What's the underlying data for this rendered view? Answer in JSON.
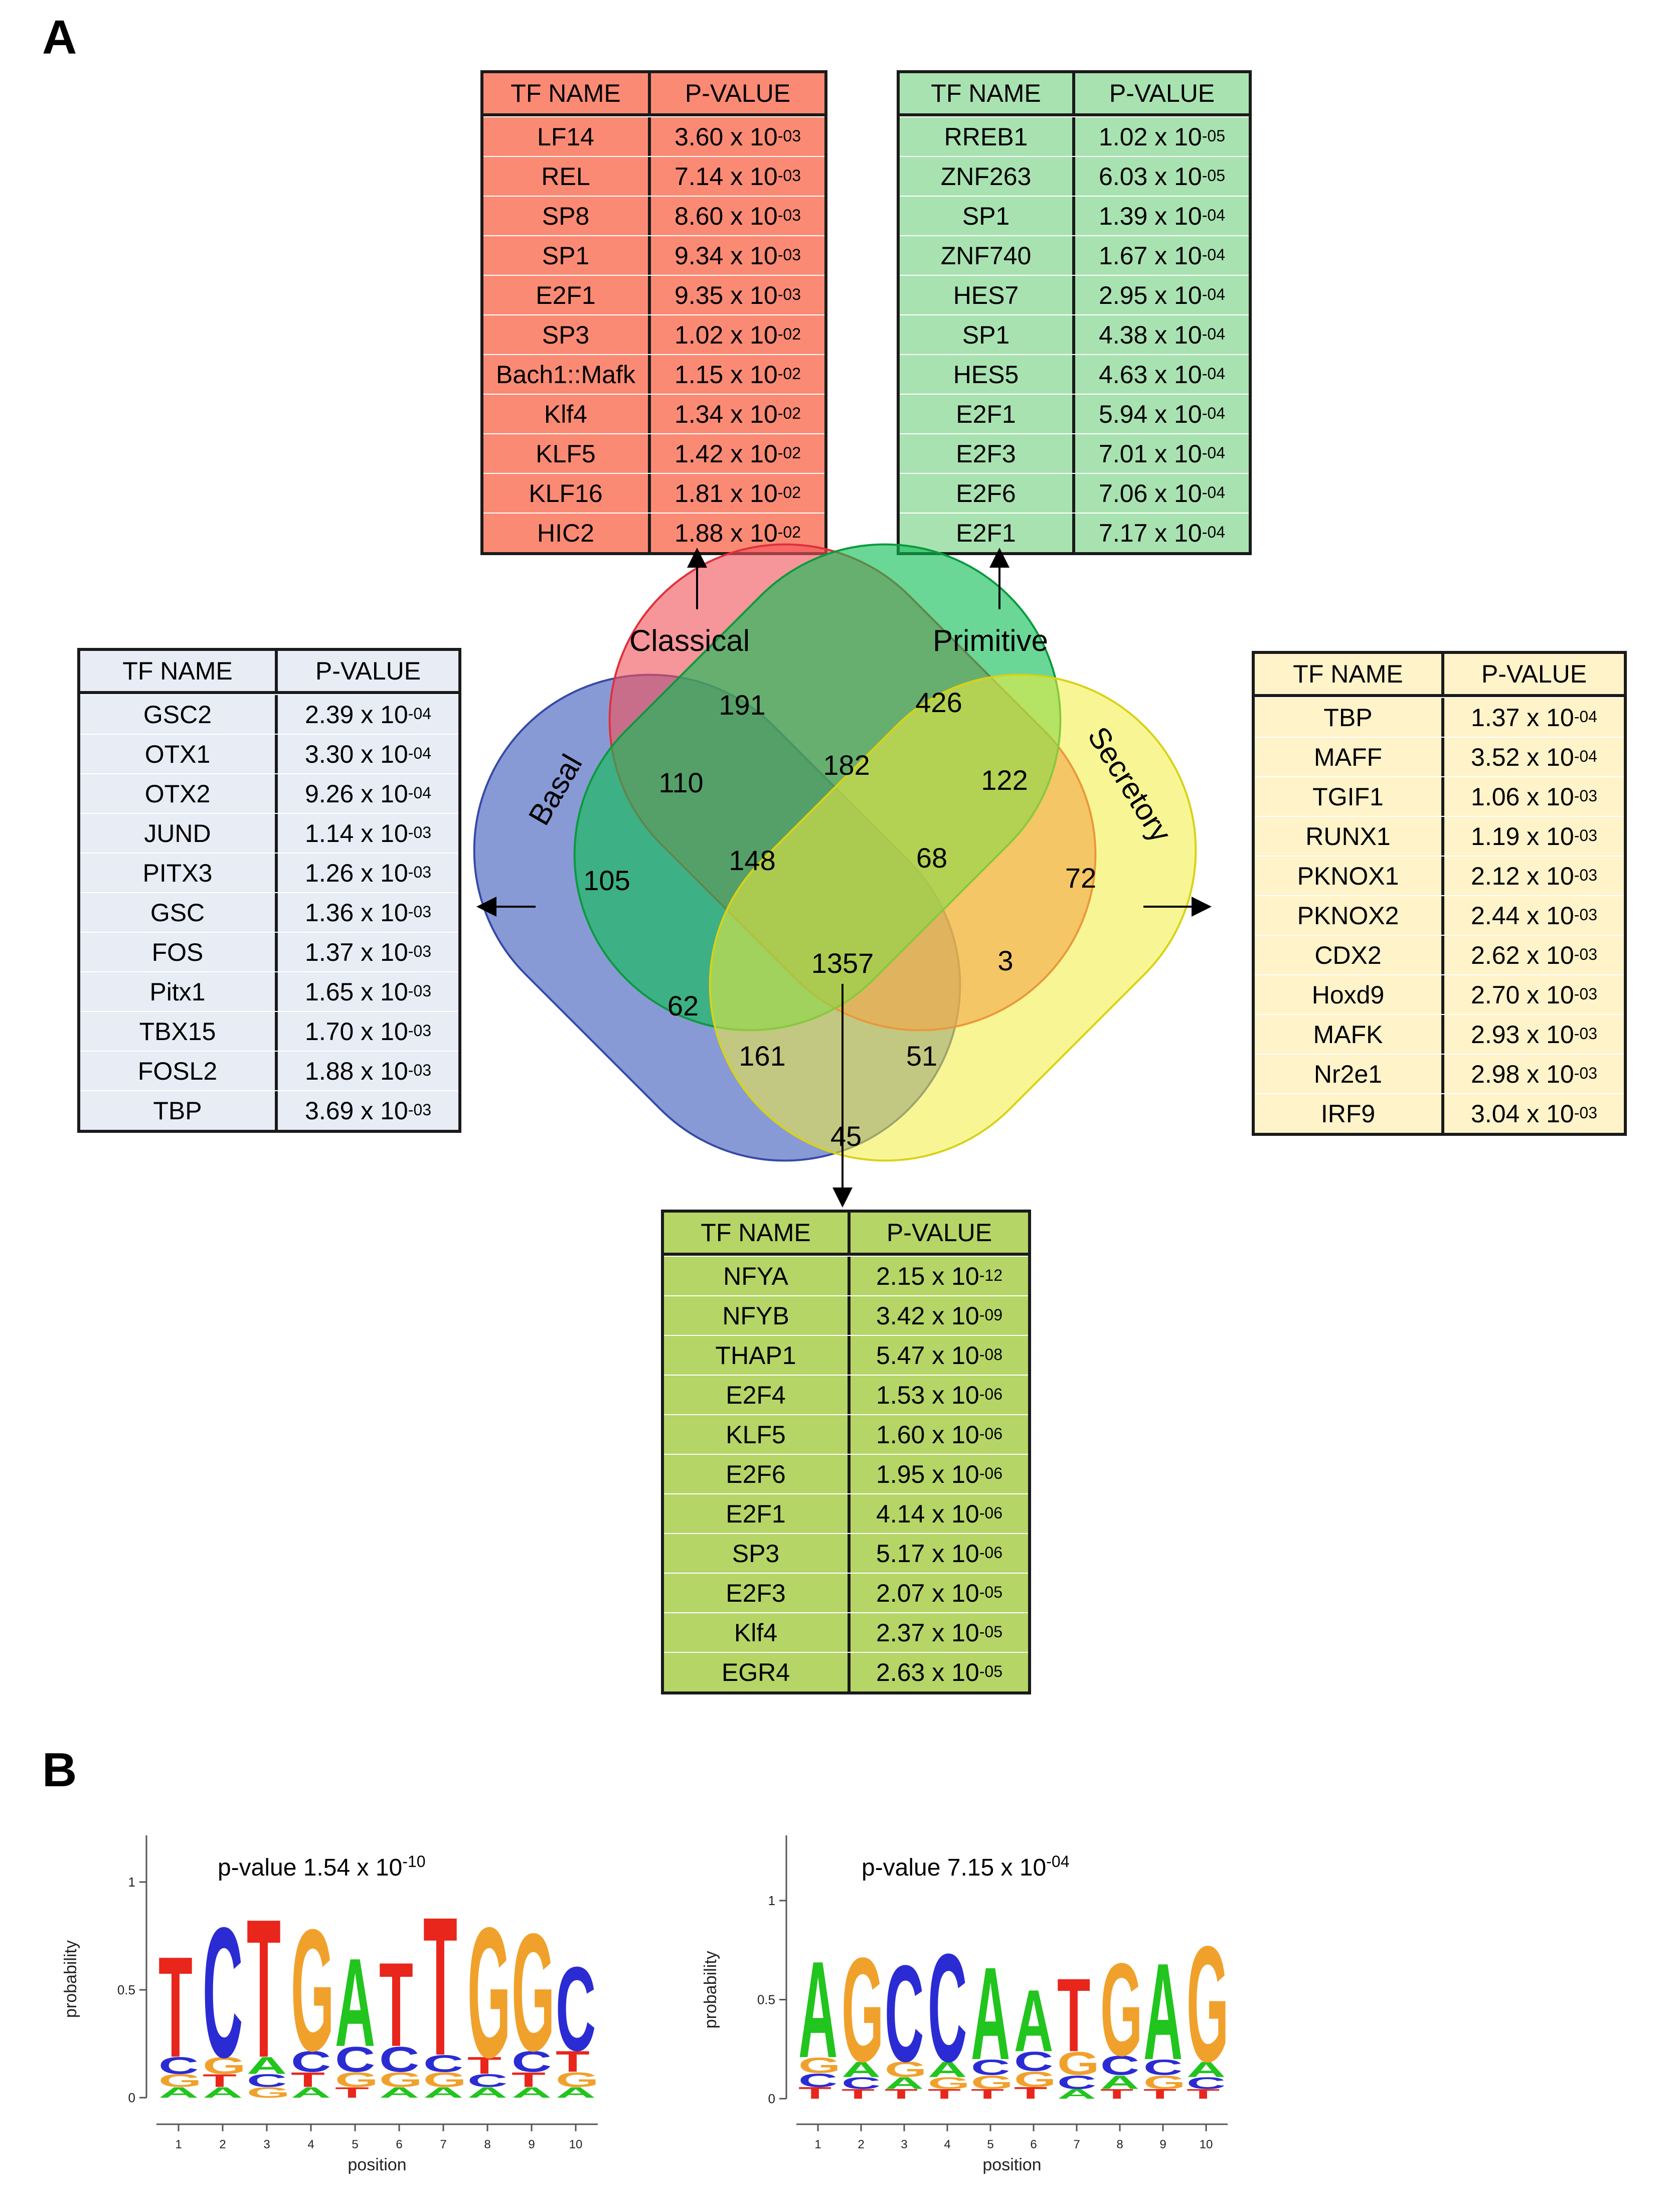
{
  "panel_labels": {
    "a": "A",
    "b": "B"
  },
  "venn": {
    "set_labels": {
      "classical": "Classical",
      "primitive": "Primitive",
      "basal": "Basal",
      "secretory": "Secretory"
    },
    "regions": {
      "classical_only": "191",
      "primitive_only": "426",
      "basal_only": "105",
      "secretory_only": "72",
      "basal_classical": "110",
      "classical_primitive": "182",
      "primitive_secretory": "122",
      "basal_classical_primitive": "148",
      "classical_primitive_secretory": "68",
      "all_four": "1357",
      "basal_primitive": "62",
      "classical_secretory": "3",
      "basal_primitive_secretory": "161",
      "basal_classical_secretory": "51",
      "basal_secretory": "45"
    }
  },
  "tables": {
    "classical": {
      "color": "#fb8a74",
      "header": {
        "name": "TF NAME",
        "pvalue": "P-VALUE"
      },
      "rows": [
        {
          "name": "LF14",
          "mant": "3.60 x 10",
          "exp": "-03"
        },
        {
          "name": "REL",
          "mant": "7.14 x 10",
          "exp": "-03"
        },
        {
          "name": "SP8",
          "mant": "8.60 x 10",
          "exp": "-03"
        },
        {
          "name": "SP1",
          "mant": "9.34 x 10",
          "exp": "-03"
        },
        {
          "name": "E2F1",
          "mant": "9.35 x 10",
          "exp": "-03"
        },
        {
          "name": "SP3",
          "mant": "1.02 x 10",
          "exp": "-02"
        },
        {
          "name": "Bach1::Mafk",
          "mant": "1.15 x 10",
          "exp": "-02"
        },
        {
          "name": "Klf4",
          "mant": "1.34 x 10",
          "exp": "-02"
        },
        {
          "name": "KLF5",
          "mant": "1.42 x 10",
          "exp": "-02"
        },
        {
          "name": "KLF16",
          "mant": "1.81 x 10",
          "exp": "-02"
        },
        {
          "name": "HIC2",
          "mant": "1.88 x 10",
          "exp": "-02"
        }
      ]
    },
    "primitive": {
      "color": "#a9e2b1",
      "header": {
        "name": "TF NAME",
        "pvalue": "P-VALUE"
      },
      "rows": [
        {
          "name": "RREB1",
          "mant": "1.02 x 10",
          "exp": "-05"
        },
        {
          "name": "ZNF263",
          "mant": "6.03 x 10",
          "exp": "-05"
        },
        {
          "name": "SP1",
          "mant": "1.39 x 10",
          "exp": "-04"
        },
        {
          "name": "ZNF740",
          "mant": "1.67 x 10",
          "exp": "-04"
        },
        {
          "name": "HES7",
          "mant": "2.95 x 10",
          "exp": "-04"
        },
        {
          "name": "SP1",
          "mant": "4.38 x 10",
          "exp": "-04"
        },
        {
          "name": "HES5",
          "mant": "4.63 x 10",
          "exp": "-04"
        },
        {
          "name": "E2F1",
          "mant": "5.94 x 10",
          "exp": "-04"
        },
        {
          "name": "E2F3",
          "mant": "7.01 x 10",
          "exp": "-04"
        },
        {
          "name": "E2F6",
          "mant": "7.06 x 10",
          "exp": "-04"
        },
        {
          "name": "E2F1",
          "mant": "7.17 x 10",
          "exp": "-04"
        }
      ]
    },
    "basal": {
      "color": "#e8ecf5",
      "header": {
        "name": "TF NAME",
        "pvalue": "P-VALUE"
      },
      "rows": [
        {
          "name": "GSC2",
          "mant": "2.39 x 10",
          "exp": "-04"
        },
        {
          "name": "OTX1",
          "mant": "3.30 x 10",
          "exp": "-04"
        },
        {
          "name": "OTX2",
          "mant": "9.26 x 10",
          "exp": "-04"
        },
        {
          "name": "JUND",
          "mant": "1.14 x 10",
          "exp": "-03"
        },
        {
          "name": "PITX3",
          "mant": "1.26 x 10",
          "exp": "-03"
        },
        {
          "name": "GSC",
          "mant": "1.36 x 10",
          "exp": "-03"
        },
        {
          "name": "FOS",
          "mant": "1.37 x 10",
          "exp": "-03"
        },
        {
          "name": "Pitx1",
          "mant": "1.65 x 10",
          "exp": "-03"
        },
        {
          "name": "TBX15",
          "mant": "1.70 x 10",
          "exp": "-03"
        },
        {
          "name": "FOSL2",
          "mant": "1.88 x 10",
          "exp": "-03"
        },
        {
          "name": "TBP",
          "mant": "3.69 x 10",
          "exp": "-03"
        }
      ]
    },
    "secretory": {
      "color": "#fff3c9",
      "header": {
        "name": "TF NAME",
        "pvalue": "P-VALUE"
      },
      "rows": [
        {
          "name": "TBP",
          "mant": "1.37 x 10",
          "exp": "-04"
        },
        {
          "name": "MAFF",
          "mant": "3.52 x 10",
          "exp": "-04"
        },
        {
          "name": "TGIF1",
          "mant": "1.06 x 10",
          "exp": "-03"
        },
        {
          "name": "RUNX1",
          "mant": "1.19 x 10",
          "exp": "-03"
        },
        {
          "name": "PKNOX1",
          "mant": "2.12 x 10",
          "exp": "-03"
        },
        {
          "name": "PKNOX2",
          "mant": "2.44 x 10",
          "exp": "-03"
        },
        {
          "name": "CDX2",
          "mant": "2.62 x 10",
          "exp": "-03"
        },
        {
          "name": "Hoxd9",
          "mant": "2.70 x 10",
          "exp": "-03"
        },
        {
          "name": "MAFK",
          "mant": "2.93 x 10",
          "exp": "-03"
        },
        {
          "name": "Nr2e1",
          "mant": "2.98 x 10",
          "exp": "-03"
        },
        {
          "name": "IRF9",
          "mant": "3.04 x 10",
          "exp": "-03"
        }
      ]
    },
    "common": {
      "color": "#b5d567",
      "header": {
        "name": "TF NAME",
        "pvalue": "P-VALUE"
      },
      "rows": [
        {
          "name": "NFYA",
          "mant": "2.15 x 10",
          "exp": "-12"
        },
        {
          "name": "NFYB",
          "mant": "3.42 x 10",
          "exp": "-09"
        },
        {
          "name": "THAP1",
          "mant": "5.47 x 10",
          "exp": "-08"
        },
        {
          "name": "E2F4",
          "mant": "1.53 x 10",
          "exp": "-06"
        },
        {
          "name": "KLF5",
          "mant": "1.60 x 10",
          "exp": "-06"
        },
        {
          "name": "E2F6",
          "mant": "1.95 x 10",
          "exp": "-06"
        },
        {
          "name": "E2F1",
          "mant": "4.14 x 10",
          "exp": "-06"
        },
        {
          "name": "SP3",
          "mant": "5.17 x 10",
          "exp": "-06"
        },
        {
          "name": "E2F3",
          "mant": "2.07 x 10",
          "exp": "-05"
        },
        {
          "name": "Klf4",
          "mant": "2.37 x 10",
          "exp": "-05"
        },
        {
          "name": "EGR4",
          "mant": "2.63 x 10",
          "exp": "-05"
        }
      ]
    }
  },
  "logos": {
    "axis_ticks": [
      "0",
      "0.5",
      "1"
    ],
    "y_label": "probability",
    "x_label": "position",
    "x_ticks": [
      "1",
      "2",
      "3",
      "4",
      "5",
      "6",
      "7",
      "8",
      "9",
      "10"
    ],
    "base_colors": {
      "A": "#22c41e",
      "C": "#2b2bd4",
      "G": "#f0a12c",
      "T": "#e8261c"
    },
    "left": {
      "title_prefix": "p-value 1.54 x 10",
      "title_exp": "-10",
      "columns": [
        [
          [
            "T",
            0.48
          ],
          [
            "C",
            0.08
          ],
          [
            "G",
            0.06
          ],
          [
            "A",
            0.05
          ]
        ],
        [
          [
            "C",
            0.62
          ],
          [
            "G",
            0.08
          ],
          [
            "T",
            0.06
          ],
          [
            "A",
            0.05
          ]
        ],
        [
          [
            "T",
            0.66
          ],
          [
            "A",
            0.08
          ],
          [
            "C",
            0.06
          ],
          [
            "G",
            0.05
          ]
        ],
        [
          [
            "G",
            0.58
          ],
          [
            "C",
            0.1
          ],
          [
            "T",
            0.07
          ],
          [
            "A",
            0.05
          ]
        ],
        [
          [
            "A",
            0.42
          ],
          [
            "C",
            0.12
          ],
          [
            "G",
            0.07
          ],
          [
            "T",
            0.05
          ]
        ],
        [
          [
            "T",
            0.4
          ],
          [
            "C",
            0.12
          ],
          [
            "G",
            0.07
          ],
          [
            "A",
            0.05
          ]
        ],
        [
          [
            "T",
            0.66
          ],
          [
            "C",
            0.08
          ],
          [
            "G",
            0.07
          ],
          [
            "A",
            0.05
          ]
        ],
        [
          [
            "G",
            0.62
          ],
          [
            "T",
            0.08
          ],
          [
            "C",
            0.06
          ],
          [
            "A",
            0.05
          ]
        ],
        [
          [
            "G",
            0.56
          ],
          [
            "C",
            0.1
          ],
          [
            "T",
            0.07
          ],
          [
            "A",
            0.05
          ]
        ],
        [
          [
            "C",
            0.4
          ],
          [
            "T",
            0.1
          ],
          [
            "G",
            0.07
          ],
          [
            "A",
            0.05
          ]
        ]
      ]
    },
    "right": {
      "title_prefix": "p-value 7.15 x 10",
      "title_exp": "-04",
      "columns": [
        [
          [
            "A",
            0.5
          ],
          [
            "G",
            0.08
          ],
          [
            "C",
            0.07
          ],
          [
            "T",
            0.06
          ]
        ],
        [
          [
            "G",
            0.54
          ],
          [
            "A",
            0.08
          ],
          [
            "C",
            0.06
          ],
          [
            "T",
            0.05
          ]
        ],
        [
          [
            "C",
            0.5
          ],
          [
            "G",
            0.08
          ],
          [
            "A",
            0.06
          ],
          [
            "T",
            0.05
          ]
        ],
        [
          [
            "C",
            0.56
          ],
          [
            "A",
            0.08
          ],
          [
            "G",
            0.06
          ],
          [
            "T",
            0.05
          ]
        ],
        [
          [
            "A",
            0.48
          ],
          [
            "C",
            0.08
          ],
          [
            "G",
            0.07
          ],
          [
            "T",
            0.05
          ]
        ],
        [
          [
            "A",
            0.32
          ],
          [
            "C",
            0.1
          ],
          [
            "G",
            0.08
          ],
          [
            "T",
            0.06
          ]
        ],
        [
          [
            "T",
            0.38
          ],
          [
            "G",
            0.12
          ],
          [
            "C",
            0.07
          ],
          [
            "A",
            0.05
          ]
        ],
        [
          [
            "G",
            0.48
          ],
          [
            "C",
            0.1
          ],
          [
            "A",
            0.07
          ],
          [
            "T",
            0.05
          ]
        ],
        [
          [
            "A",
            0.5
          ],
          [
            "C",
            0.08
          ],
          [
            "G",
            0.07
          ],
          [
            "T",
            0.05
          ]
        ],
        [
          [
            "G",
            0.6
          ],
          [
            "A",
            0.08
          ],
          [
            "C",
            0.06
          ],
          [
            "T",
            0.05
          ]
        ]
      ]
    }
  }
}
